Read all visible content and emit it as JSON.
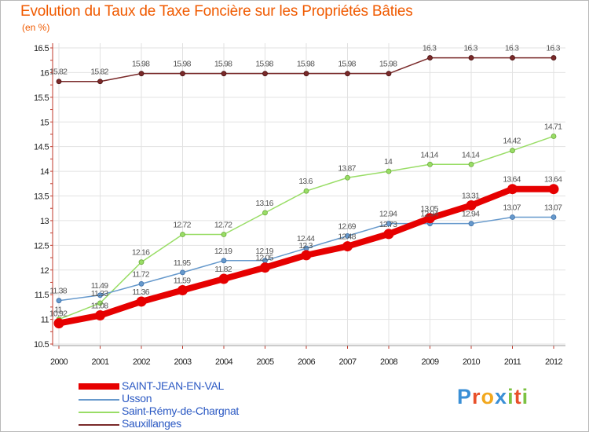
{
  "chart_data": {
    "type": "line",
    "title": "Evolution du Taux de Taxe Foncière sur les Propriétés Bâties",
    "ylabel": "(en %)",
    "xlabel": "",
    "categories": [
      "2000",
      "2001",
      "2002",
      "2003",
      "2004",
      "2005",
      "2006",
      "2007",
      "2008",
      "2009",
      "2010",
      "2011",
      "2012"
    ],
    "ylim": [
      10.5,
      16.5
    ],
    "yticks": [
      "10.5",
      "11",
      "11.5",
      "12",
      "12.5",
      "13",
      "13.5",
      "14",
      "14.5",
      "15",
      "15.5",
      "16",
      "16.5"
    ],
    "series": [
      {
        "name": "SAINT-JEAN-EN-VAL",
        "color": "#e60000",
        "values": [
          10.92,
          11.08,
          11.36,
          11.59,
          11.82,
          12.05,
          12.3,
          12.48,
          12.73,
          13.05,
          13.31,
          13.64,
          13.64
        ],
        "labels": [
          "10.92",
          "11.08",
          "11.36",
          "11.59",
          "11.82",
          "12.05",
          "12.3",
          "12.48",
          "12.73",
          "13.05",
          "13.31",
          "13.64",
          "13.64"
        ]
      },
      {
        "name": "Usson",
        "color": "#6699cc",
        "values": [
          11.38,
          11.49,
          11.72,
          11.95,
          12.19,
          12.19,
          12.44,
          12.69,
          12.94,
          12.94,
          12.94,
          13.07,
          13.07
        ],
        "labels": [
          "11.38",
          "11.49",
          "11.72",
          "11.95",
          "12.19",
          "12.19",
          "12.44",
          "12.69",
          "12.94",
          "12.94",
          "12.94",
          "13.07",
          "13.07"
        ]
      },
      {
        "name": "Saint-Rémy-de-Chargnat",
        "color": "#99dd66",
        "values": [
          11.0,
          11.33,
          12.16,
          12.72,
          12.72,
          13.16,
          13.6,
          13.87,
          14.0,
          14.14,
          14.14,
          14.42,
          14.71
        ],
        "labels": [
          "11",
          "11.33",
          "12.16",
          "12.72",
          "12.72",
          "13.16",
          "13.6",
          "13.87",
          "14",
          "14.14",
          "14.14",
          "14.42",
          "14.71"
        ]
      },
      {
        "name": "Sauxillanges",
        "color": "#7a2a2a",
        "values": [
          15.82,
          15.82,
          15.98,
          15.98,
          15.98,
          15.98,
          15.98,
          15.98,
          15.98,
          16.3,
          16.3,
          16.3,
          16.3
        ],
        "labels": [
          "15.82",
          "15.82",
          "15.98",
          "15.98",
          "15.98",
          "15.98",
          "15.98",
          "15.98",
          "15.98",
          "16.3",
          "16.3",
          "16.3",
          "16.3"
        ]
      }
    ]
  },
  "legend": {
    "items": [
      "SAINT-JEAN-EN-VAL",
      "Usson",
      "Saint-Rémy-de-Chargnat",
      "Sauxillanges"
    ]
  },
  "brand": {
    "logo_letters": [
      "P",
      "r",
      "o",
      "x",
      "i",
      "t",
      "i"
    ],
    "logo_colors": [
      "#3a8fd6",
      "#e8502a",
      "#f2a81e",
      "#3a8fd6",
      "#7cc242",
      "#e8502a",
      "#7cc242"
    ]
  }
}
